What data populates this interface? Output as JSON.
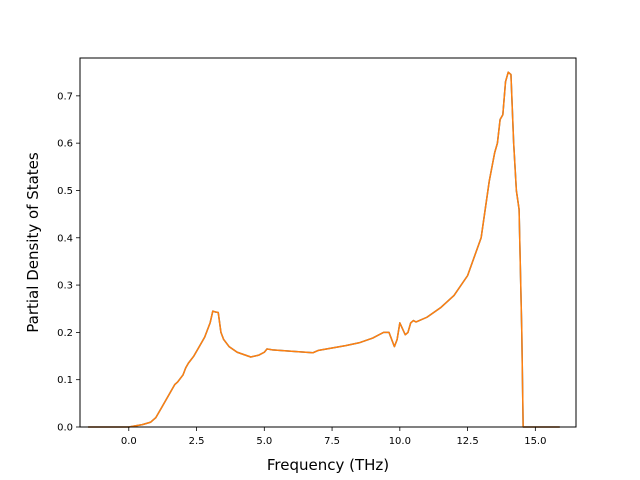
{
  "chart_data": {
    "type": "line",
    "title": "",
    "xlabel": "Frequency (THz)",
    "ylabel": "Partial Density of States",
    "xlim": [
      -1.8,
      16.5
    ],
    "ylim": [
      0.0,
      0.78
    ],
    "x_ticks": [
      0.0,
      2.5,
      5.0,
      7.5,
      10.0,
      12.5,
      15.0
    ],
    "x_tick_labels": [
      "0.0",
      "2.5",
      "5.0",
      "7.5",
      "10.0",
      "12.5",
      "15.0"
    ],
    "y_ticks": [
      0.0,
      0.1,
      0.2,
      0.3,
      0.4,
      0.5,
      0.6,
      0.7
    ],
    "y_tick_labels": [
      "0.0",
      "0.1",
      "0.2",
      "0.3",
      "0.4",
      "0.5",
      "0.6",
      "0.7"
    ],
    "grid": false,
    "legend": "none",
    "series": [
      {
        "color": "#1f77b4",
        "x": [
          -1.5,
          -0.5,
          0.0,
          0.5,
          0.8,
          1.0,
          1.2,
          1.5,
          1.7,
          1.8,
          2.0,
          2.1,
          2.2,
          2.4,
          2.6,
          2.8,
          3.0,
          3.1,
          3.2,
          3.3,
          3.4,
          3.5,
          3.7,
          4.0,
          4.5,
          4.8,
          5.0,
          5.1,
          5.3,
          6.0,
          6.8,
          7.0,
          7.5,
          8.0,
          8.5,
          9.0,
          9.4,
          9.6,
          9.8,
          9.9,
          10.0,
          10.2,
          10.3,
          10.4,
          10.5,
          10.6,
          11.0,
          11.5,
          12.0,
          12.5,
          13.0,
          13.3,
          13.5,
          13.6,
          13.7,
          13.8,
          13.9,
          14.0,
          14.1,
          14.2,
          14.3,
          14.4,
          14.5,
          14.55,
          15.0,
          15.9
        ],
        "values": [
          0.0,
          0.0,
          0.0,
          0.005,
          0.01,
          0.02,
          0.04,
          0.07,
          0.09,
          0.095,
          0.11,
          0.125,
          0.135,
          0.15,
          0.17,
          0.19,
          0.22,
          0.245,
          0.243,
          0.242,
          0.2,
          0.185,
          0.17,
          0.158,
          0.148,
          0.152,
          0.158,
          0.165,
          0.163,
          0.16,
          0.157,
          0.162,
          0.167,
          0.172,
          0.178,
          0.188,
          0.2,
          0.2,
          0.17,
          0.185,
          0.22,
          0.195,
          0.2,
          0.22,
          0.225,
          0.222,
          0.232,
          0.252,
          0.278,
          0.32,
          0.4,
          0.52,
          0.58,
          0.6,
          0.65,
          0.66,
          0.73,
          0.75,
          0.745,
          0.6,
          0.5,
          0.46,
          0.2,
          0.0,
          0.0,
          0.0
        ]
      },
      {
        "color": "#ff7f0e",
        "x": [
          -1.5,
          -0.5,
          0.0,
          0.5,
          0.8,
          1.0,
          1.2,
          1.5,
          1.7,
          1.8,
          2.0,
          2.1,
          2.2,
          2.4,
          2.6,
          2.8,
          3.0,
          3.1,
          3.2,
          3.3,
          3.4,
          3.5,
          3.7,
          4.0,
          4.5,
          4.8,
          5.0,
          5.1,
          5.3,
          6.0,
          6.8,
          7.0,
          7.5,
          8.0,
          8.5,
          9.0,
          9.4,
          9.6,
          9.8,
          9.9,
          10.0,
          10.2,
          10.3,
          10.4,
          10.5,
          10.6,
          11.0,
          11.5,
          12.0,
          12.5,
          13.0,
          13.3,
          13.5,
          13.6,
          13.7,
          13.8,
          13.9,
          14.0,
          14.1,
          14.2,
          14.3,
          14.4,
          14.5,
          14.55,
          15.0,
          15.9
        ],
        "values": [
          0.0,
          0.0,
          0.0,
          0.005,
          0.01,
          0.02,
          0.04,
          0.07,
          0.09,
          0.095,
          0.11,
          0.125,
          0.135,
          0.15,
          0.17,
          0.19,
          0.22,
          0.245,
          0.243,
          0.242,
          0.2,
          0.185,
          0.17,
          0.158,
          0.148,
          0.152,
          0.158,
          0.165,
          0.163,
          0.16,
          0.157,
          0.162,
          0.167,
          0.172,
          0.178,
          0.188,
          0.2,
          0.2,
          0.17,
          0.185,
          0.22,
          0.195,
          0.2,
          0.22,
          0.225,
          0.222,
          0.232,
          0.252,
          0.278,
          0.32,
          0.4,
          0.52,
          0.58,
          0.6,
          0.65,
          0.66,
          0.73,
          0.75,
          0.745,
          0.6,
          0.5,
          0.46,
          0.2,
          0.0,
          0.0,
          0.0
        ]
      }
    ]
  }
}
